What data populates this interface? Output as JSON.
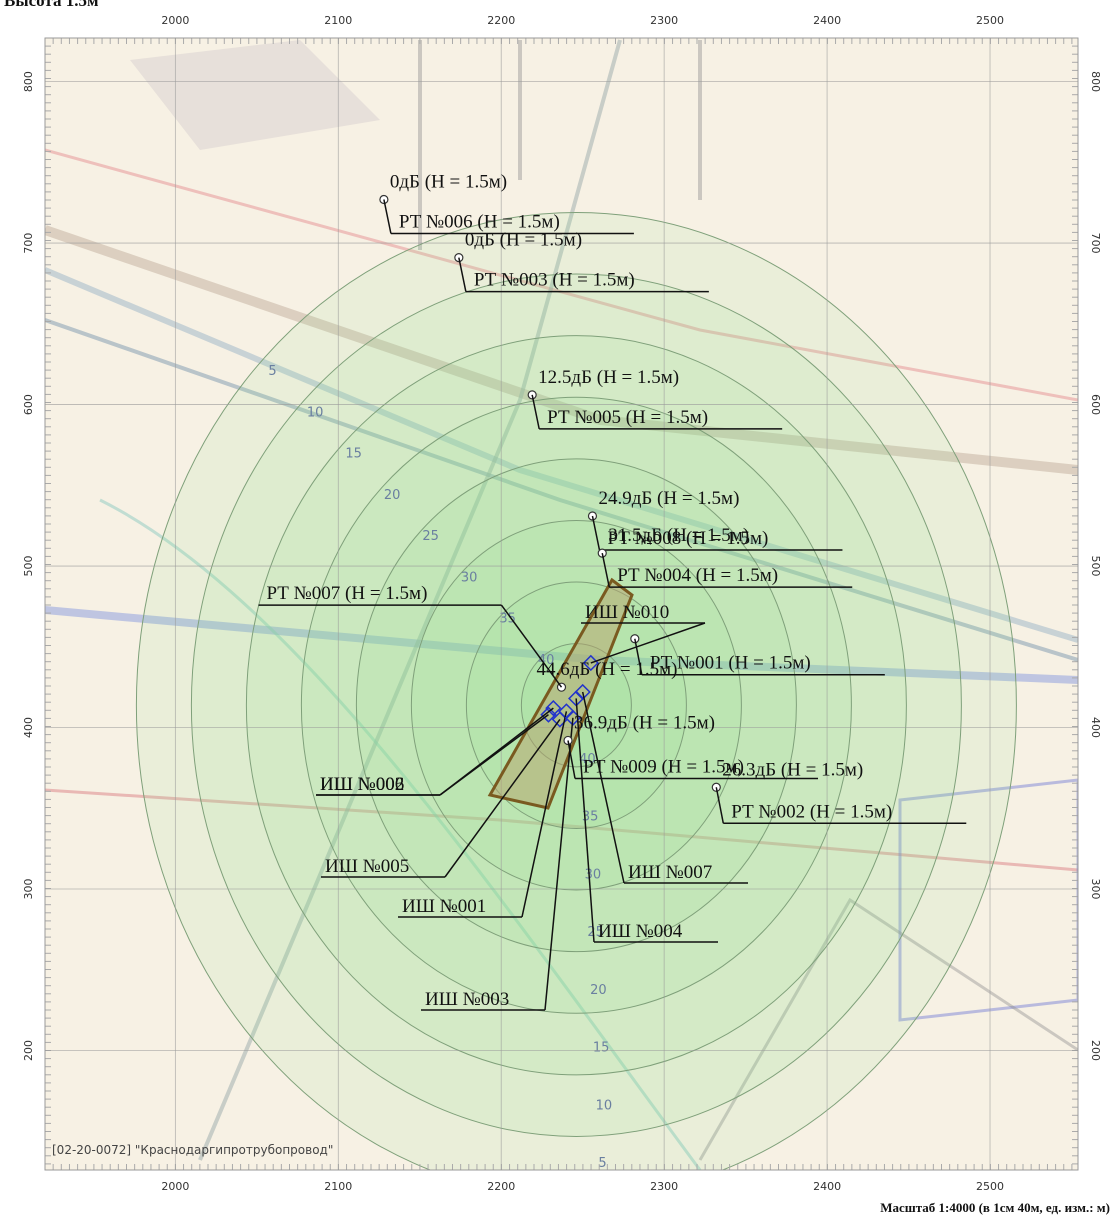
{
  "header": {
    "title": "Высота 1.5м"
  },
  "map": {
    "xlim": [
      1920,
      2554
    ],
    "ylim": [
      126,
      827
    ],
    "xticks": [
      2000,
      2100,
      2200,
      2300,
      2400,
      2500
    ],
    "yticks": [
      200,
      300,
      400,
      500,
      600,
      700,
      800
    ],
    "contour_levels": [
      5,
      10,
      15,
      20,
      25,
      30,
      35,
      40
    ],
    "points": [
      {
        "name": "РТ №006 (Н = 1.5м)",
        "value": 0,
        "value_label": "0дБ (Н = 1.5м)",
        "x": 2128,
        "y": 727
      },
      {
        "name": "РТ №003 (Н = 1.5м)",
        "value": 0,
        "value_label": "0дБ (Н = 1.5м)",
        "x": 2174,
        "y": 691
      },
      {
        "name": "РТ №005 (Н = 1.5м)",
        "value": 12.5,
        "value_label": "12.5дБ (Н = 1.5м)",
        "x": 2219,
        "y": 606
      },
      {
        "name": "РТ №008 (Н = 1.5м)",
        "value": 24.9,
        "value_label": "24.9дБ (Н = 1.5м)",
        "x": 2256,
        "y": 531
      },
      {
        "name": "РТ №004 (Н = 1.5м)",
        "value": 31.5,
        "value_label": "31.5дБ (Н = 1.5м)",
        "x": 2262,
        "y": 508
      },
      {
        "name": "РТ №001 (Н = 1.5м)",
        "x": 2282,
        "y": 455
      },
      {
        "name": "РТ №007 (Н = 1.5м)",
        "value": 44.6,
        "value_label": "44.6дБ (Н = 1.5м)",
        "x": 2237,
        "y": 425
      },
      {
        "name": "РТ №009 (Н = 1.5м)",
        "value": 36.9,
        "value_label": "36.9дБ (Н = 1.5м)",
        "x": 2241,
        "y": 392
      },
      {
        "name": "РТ №002 (Н = 1.5м)",
        "value": 26.3,
        "value_label": "26.3дБ (Н = 1.5м)",
        "x": 2332,
        "y": 363
      }
    ],
    "sources": [
      {
        "name": "ИШ №002",
        "x": 2229,
        "y": 408
      },
      {
        "name": "ИШ №006",
        "x": 2232,
        "y": 412
      },
      {
        "name": "ИШ №005",
        "x": 2236,
        "y": 405
      },
      {
        "name": "ИШ №001",
        "x": 2240,
        "y": 410
      },
      {
        "name": "ИШ №003",
        "x": 2244,
        "y": 406
      },
      {
        "name": "ИШ №004",
        "x": 2246,
        "y": 418
      },
      {
        "name": "ИШ №007",
        "x": 2250,
        "y": 422
      },
      {
        "name": "ИШ №010",
        "x": 2255,
        "y": 440
      }
    ],
    "watermark": "[02-20-0072] \"Краснодаргипротрубопровод\"",
    "scale": "Масштаб 1:4000 (в 1см 40м, ед. изм.: м)"
  }
}
